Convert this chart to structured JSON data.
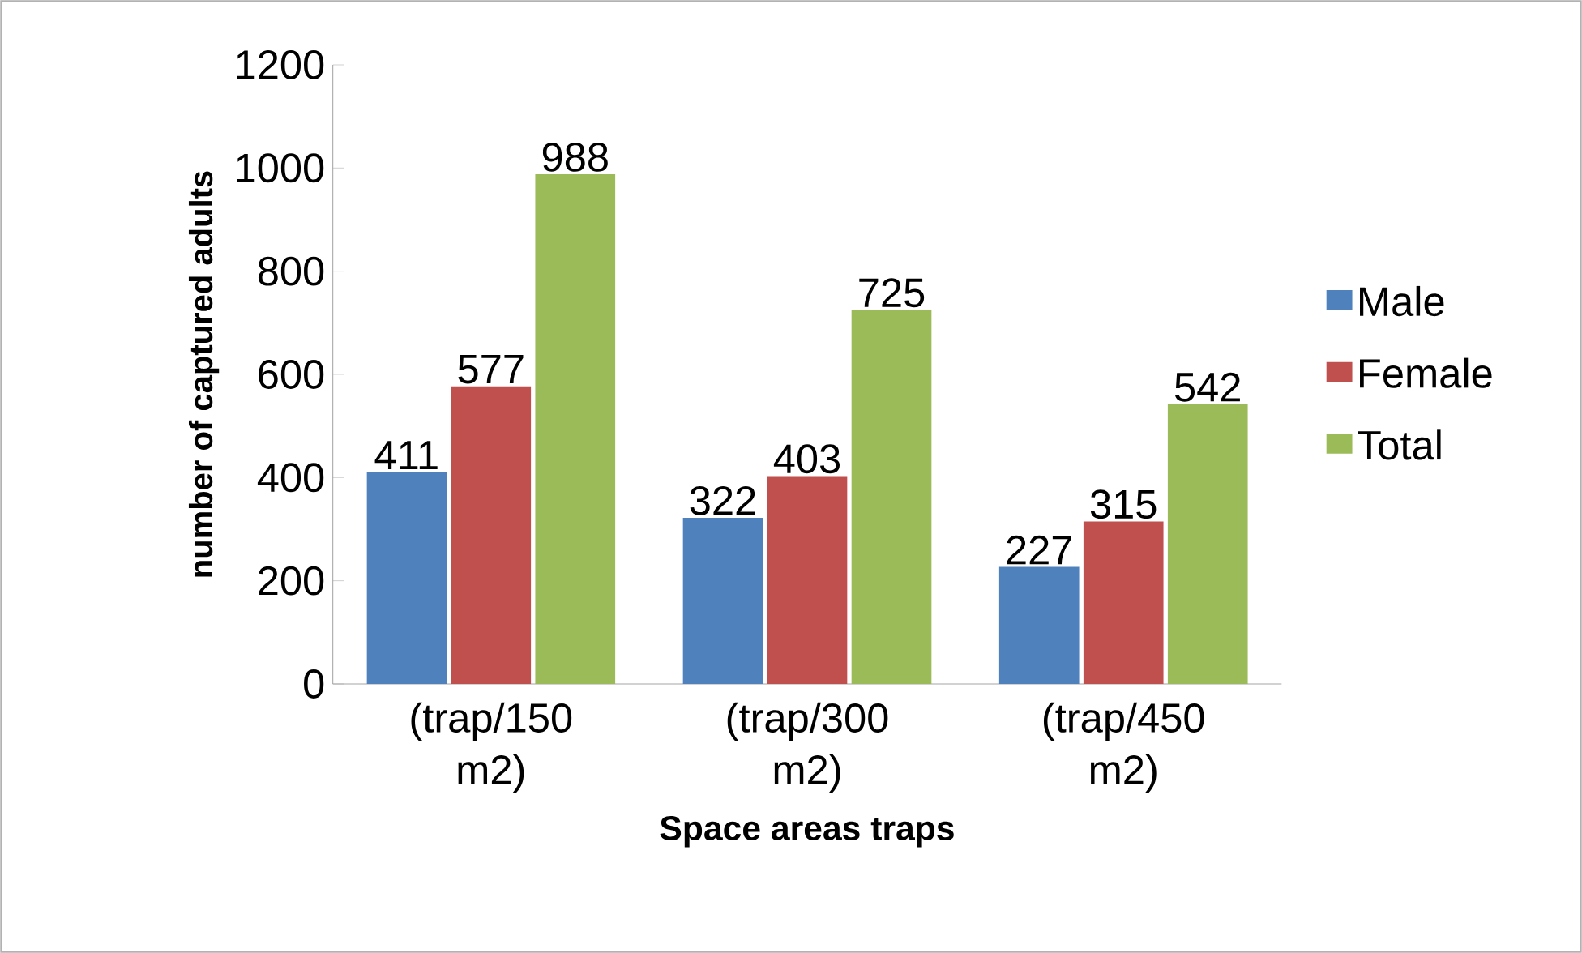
{
  "chart_data": {
    "type": "bar",
    "xlabel": "Space areas traps",
    "ylabel": "number of captured adults",
    "categories": [
      "(trap/150 m2)",
      "(trap/300 m2)",
      "(trap/450 m2)"
    ],
    "series": [
      {
        "name": "Male",
        "color": "#4f81bd",
        "values": [
          411,
          322,
          227
        ]
      },
      {
        "name": "Female",
        "color": "#c0504d",
        "values": [
          577,
          403,
          315
        ]
      },
      {
        "name": "Total",
        "color": "#9bbb59",
        "values": [
          988,
          725,
          542
        ]
      }
    ],
    "ylim": [
      0,
      1200
    ],
    "yticks": [
      0,
      200,
      400,
      600,
      800,
      1000,
      1200
    ],
    "data_labels": true,
    "legend": "right",
    "grid": false
  }
}
